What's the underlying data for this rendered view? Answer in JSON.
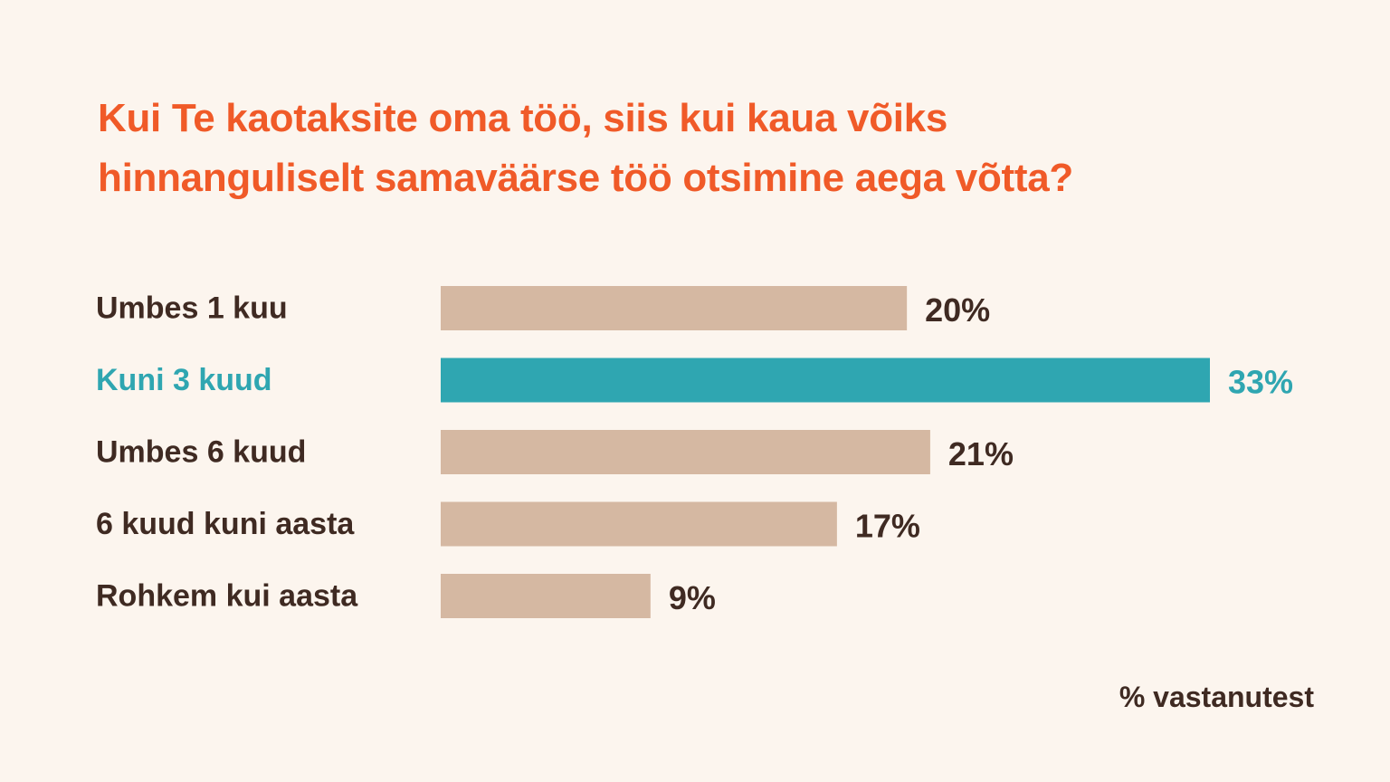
{
  "chart_data": {
    "type": "bar",
    "orientation": "horizontal",
    "title_lines": [
      "Kui Te kaotaksite oma töö, siis kui kaua võiks",
      "hinnanguliselt samaväärse töö otsimine aega võtta?"
    ],
    "categories": [
      "Umbes 1 kuu",
      "Kuni 3 kuud",
      "Umbes 6 kuud",
      "6 kuud kuni aasta",
      "Rohkem kui aasta"
    ],
    "values": [
      20,
      33,
      21,
      17,
      9
    ],
    "value_labels": [
      "20%",
      "33%",
      "21%",
      "17%",
      "9%"
    ],
    "highlight_index": 1,
    "unit_note": "% vastanutest",
    "xlim": [
      0,
      33
    ],
    "grid": false,
    "legend": "none"
  },
  "colors": {
    "background": "#fcf5ee",
    "title": "#f05a28",
    "bar": "#d5b8a2",
    "highlight": "#2fa6b1",
    "text": "#3f2a22"
  }
}
